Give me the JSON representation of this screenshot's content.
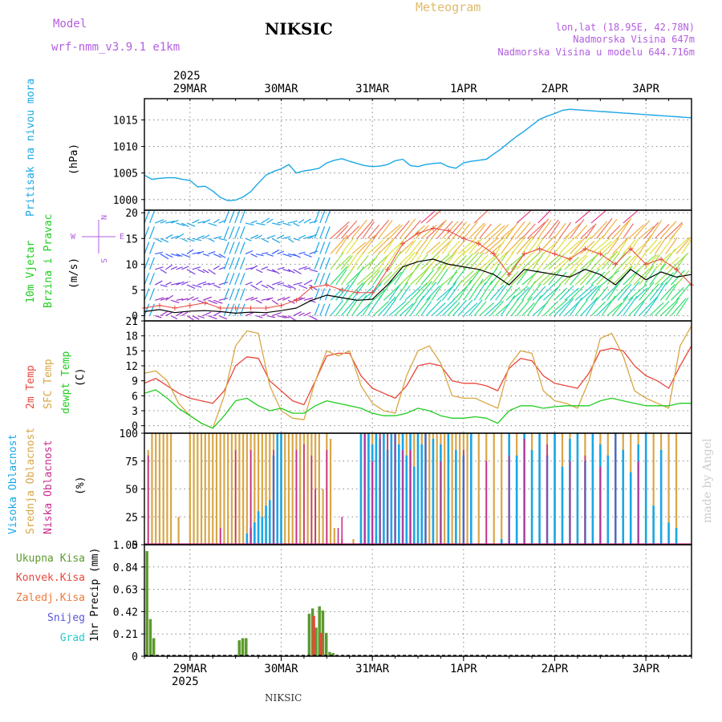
{
  "header": {
    "model_label": "Model",
    "model_name": "wrf-nmm_v3.9.1 e1km",
    "title": "NIKSIC",
    "meteogram": "Meteogram",
    "lonlat": "lon,lat (18.95E, 42.78N)",
    "elev": "Nadmorska Visina 647m",
    "elev_model": "Nadmorska Visina u modelu 644.716m",
    "footer": "NIKSIC",
    "credit": "made by Angel",
    "year": "2025"
  },
  "colors": {
    "pressure": "#1aa7e6",
    "temp2m": "#e8473c",
    "sfc": "#d9a646",
    "dew": "#22cc22",
    "high": "#1aa7e6",
    "mid": "#d9a646",
    "low": "#cc2b8f",
    "total": "#5c9a2c",
    "conv": "#e8473c",
    "frozen": "#ee7a3a",
    "snow": "#5555dd",
    "hail": "#22cccc",
    "wind_label": "#22cc22",
    "compass": "#b35ee0"
  },
  "chart_data": [
    {
      "type": "line",
      "panel": "pressure",
      "ylabel_main": "Pritisak na nivou mora",
      "ylabel_unit": "(hPa)",
      "ylim": [
        998,
        1019
      ],
      "yticks": [
        "1000",
        "1005",
        "1010",
        "1015"
      ],
      "ytick_values": [
        1000,
        1005,
        1010,
        1015
      ],
      "x": [
        0,
        2,
        4,
        6,
        8,
        10,
        12,
        14,
        16,
        18,
        20,
        22,
        24,
        26,
        28,
        30,
        32,
        34,
        36,
        38,
        40,
        42,
        44,
        46,
        48,
        50,
        52,
        54,
        56,
        58,
        60,
        62,
        64,
        66,
        68,
        70,
        72,
        74,
        76,
        78,
        80,
        82,
        84,
        86,
        88,
        90,
        92,
        94,
        96,
        98,
        100,
        102,
        104,
        106,
        108,
        110,
        112,
        114,
        116,
        118,
        120,
        122,
        124,
        126,
        128,
        130,
        132,
        134,
        136,
        138,
        140,
        142,
        144
      ],
      "series": [
        {
          "values": [
            1004.6,
            1003.8,
            1004.0,
            1004.1,
            1004.1,
            1003.8,
            1003.6,
            1002.4,
            1002.5,
            1001.6,
            1000.4,
            999.8,
            999.9,
            1000.5,
            1001.5,
            1003.1,
            1004.6,
            1005.3,
            1005.8,
            1006.6,
            1005.0,
            1005.4,
            1005.6,
            1005.9,
            1006.9,
            1007.4,
            1007.7,
            1007.2,
            1006.8,
            1006.4,
            1006.2,
            1006.3,
            1006.6,
            1007.3,
            1007.6,
            1006.4,
            1006.2,
            1006.6,
            1006.8,
            1006.9,
            1006.2,
            1005.9,
            1006.9,
            1007.2,
            1007.4,
            1007.6,
            1008.6,
            1009.6,
            1010.8,
            1011.9,
            1012.9,
            1014.0,
            1015.1,
            1015.7,
            1016.2,
            1016.8,
            1017.0,
            1016.9,
            1016.8,
            1016.7,
            1016.6,
            1016.5,
            1016.4,
            1016.3,
            1016.2,
            1016.1,
            1016.0,
            1015.9,
            1015.8,
            1015.7,
            1015.6,
            1015.5,
            1015.4
          ]
        }
      ]
    },
    {
      "type": "line",
      "panel": "wind",
      "ylabel_main": "10m Vjetar",
      "ylabel_sub": "Brzina i Pravac",
      "ylabel_unit": "(m/s)",
      "compass": {
        "north": "N",
        "south": "S",
        "west": "W",
        "east": "E"
      },
      "ylim": [
        -1,
        20.5
      ],
      "yticks": [
        "0",
        "5",
        "10",
        "15",
        "20"
      ],
      "ytick_values": [
        0,
        5,
        10,
        15,
        20
      ],
      "x": [
        0,
        4,
        8,
        12,
        16,
        20,
        24,
        28,
        32,
        36,
        40,
        44,
        48,
        52,
        56,
        60,
        64,
        68,
        72,
        76,
        80,
        84,
        88,
        92,
        96,
        100,
        104,
        108,
        112,
        116,
        120,
        124,
        128,
        132,
        136,
        140,
        144
      ],
      "series": [
        {
          "name": "speed",
          "values": [
            0.8,
            1.2,
            0.6,
            0.9,
            1.0,
            0.8,
            0.5,
            0.7,
            0.6,
            1.0,
            1.5,
            3.0,
            4.0,
            3.5,
            3.0,
            3.2,
            6.0,
            9.5,
            10.5,
            11.0,
            10.0,
            9.5,
            9.0,
            8.0,
            6.0,
            9.0,
            8.5,
            8.0,
            7.5,
            9.0,
            8.0,
            6.0,
            9.0,
            7.0,
            8.5,
            7.5,
            8.0
          ]
        },
        {
          "name": "gust",
          "values": [
            1.5,
            2.0,
            1.5,
            2.0,
            2.5,
            1.5,
            1.5,
            1.5,
            1.5,
            2.0,
            3.0,
            5.5,
            6.0,
            5.0,
            4.5,
            4.5,
            9.0,
            14.0,
            16.0,
            17.0,
            16.5,
            15.0,
            14.0,
            12.0,
            8.0,
            12.0,
            13.0,
            12.0,
            11.0,
            13.0,
            12.0,
            10.0,
            13.0,
            10.0,
            11.0,
            9.0,
            6.0
          ]
        }
      ]
    },
    {
      "type": "line",
      "panel": "temperature",
      "ylabel_1": "2m Temp",
      "ylabel_2": "SFC Temp",
      "ylabel_3": "dewpt Temp",
      "ylabel_unit": "(C)",
      "ylim": [
        -1.5,
        21
      ],
      "yticks": [
        "0",
        "3",
        "6",
        "9",
        "12",
        "15",
        "18",
        "21"
      ],
      "ytick_values": [
        0,
        3,
        6,
        9,
        12,
        15,
        18,
        21
      ],
      "x": [
        0,
        3,
        6,
        9,
        12,
        15,
        18,
        21,
        24,
        27,
        30,
        33,
        36,
        39,
        42,
        45,
        48,
        51,
        54,
        57,
        60,
        63,
        66,
        69,
        72,
        75,
        78,
        81,
        84,
        87,
        90,
        93,
        96,
        99,
        102,
        105,
        108,
        111,
        114,
        117,
        120,
        123,
        126,
        129,
        132,
        135,
        138,
        141,
        144
      ],
      "series": [
        {
          "name": "2m Temp",
          "values": [
            8.5,
            9.5,
            8.0,
            6.5,
            5.5,
            5.0,
            4.5,
            7.0,
            12.0,
            13.8,
            13.5,
            9.0,
            7.0,
            5.0,
            4.2,
            9.0,
            14.0,
            14.5,
            14.5,
            10.0,
            7.5,
            6.5,
            5.5,
            8.0,
            12.0,
            12.5,
            12.0,
            9.0,
            8.5,
            8.5,
            8.0,
            7.0,
            11.5,
            13.5,
            13.0,
            10.0,
            8.5,
            8.0,
            7.5,
            10.5,
            15.0,
            15.5,
            15.0,
            12.0,
            10.0,
            9.0,
            7.5,
            12.0,
            16.0
          ]
        },
        {
          "name": "SFC Temp",
          "values": [
            10.5,
            11.0,
            9.0,
            4.5,
            2.0,
            0.5,
            -0.5,
            6.0,
            16.0,
            19.0,
            18.5,
            8.0,
            3.0,
            1.5,
            1.2,
            9.0,
            15.0,
            14.0,
            15.0,
            8.0,
            4.5,
            3.0,
            2.5,
            10.0,
            15.0,
            16.0,
            12.5,
            6.0,
            5.5,
            5.5,
            4.5,
            3.5,
            12.0,
            15.0,
            14.5,
            7.0,
            5.0,
            4.5,
            3.5,
            9.0,
            17.5,
            18.5,
            14.0,
            7.0,
            5.5,
            4.5,
            3.5,
            16.0,
            20.0
          ]
        },
        {
          "name": "dewpt Temp",
          "values": [
            6.5,
            7.2,
            5.5,
            3.5,
            2.0,
            0.5,
            -0.5,
            2.0,
            5.0,
            5.5,
            4.0,
            3.0,
            3.5,
            2.5,
            2.5,
            4.0,
            5.0,
            4.5,
            4.0,
            3.5,
            2.5,
            2.0,
            2.0,
            2.5,
            3.5,
            3.0,
            2.0,
            1.5,
            1.5,
            1.8,
            1.5,
            0.5,
            3.0,
            4.0,
            4.0,
            3.5,
            3.8,
            4.0,
            4.0,
            4.0,
            5.0,
            5.5,
            5.0,
            4.5,
            4.0,
            4.0,
            4.0,
            4.5,
            4.5
          ]
        }
      ]
    },
    {
      "type": "bar",
      "panel": "clouds",
      "ylabel_1": "Visoka Oblacnost",
      "ylabel_2": "Srednja Oblacnost",
      "ylabel_3": "Niska Oblacnost",
      "ylabel_unit": "(%)",
      "ylim": [
        0,
        100
      ],
      "yticks": [
        "0",
        "25",
        "50",
        "75",
        "100"
      ],
      "ytick_values": [
        0,
        25,
        50,
        75,
        100
      ],
      "series": [
        {
          "name": "Visoka Oblacnost",
          "x": [
            27,
            28,
            29,
            30,
            31,
            32,
            33,
            34,
            35,
            36,
            57,
            58,
            59,
            60,
            61,
            62,
            63,
            64,
            65,
            66,
            67,
            68,
            69,
            70,
            71,
            72,
            73,
            74,
            76,
            78,
            80,
            82,
            84,
            86,
            94,
            96,
            98,
            100,
            102,
            104,
            106,
            108,
            110,
            112,
            114,
            116,
            118,
            120,
            122,
            124,
            126,
            128,
            130,
            132,
            134,
            136,
            138,
            140
          ],
          "values": [
            10,
            15,
            20,
            30,
            25,
            35,
            40,
            80,
            100,
            100,
            100,
            100,
            100,
            90,
            100,
            95,
            100,
            85,
            100,
            100,
            90,
            100,
            80,
            100,
            70,
            100,
            90,
            100,
            95,
            90,
            100,
            85,
            80,
            100,
            5,
            100,
            80,
            100,
            85,
            100,
            80,
            100,
            70,
            95,
            100,
            75,
            100,
            90,
            80,
            100,
            85,
            65,
            90,
            100,
            35,
            85,
            20,
            15
          ]
        },
        {
          "name": "Srednja Oblacnost",
          "x": [
            1,
            2,
            3,
            4,
            5,
            6,
            7,
            9,
            12,
            13,
            14,
            15,
            16,
            17,
            18,
            19,
            20,
            21,
            22,
            23,
            24,
            25,
            26,
            27,
            28,
            29,
            30,
            31,
            32,
            33,
            34,
            35,
            36,
            37,
            38,
            39,
            40,
            41,
            42,
            43,
            44,
            45,
            46,
            47,
            48,
            49,
            50,
            52,
            55,
            57,
            58,
            59,
            60,
            61,
            62,
            63,
            64,
            65,
            66,
            67,
            68,
            69,
            70,
            71,
            72,
            73,
            74,
            75,
            76,
            77,
            78,
            79,
            80,
            81,
            82,
            83,
            84,
            85,
            86,
            88,
            90,
            92,
            94,
            96,
            98,
            100,
            102,
            104,
            106,
            108,
            110,
            112,
            114,
            116,
            118,
            120,
            122,
            124,
            126,
            128,
            130,
            132,
            134,
            136,
            138,
            140
          ],
          "values": [
            85,
            100,
            100,
            100,
            100,
            100,
            100,
            25,
            100,
            100,
            100,
            100,
            100,
            100,
            100,
            100,
            100,
            100,
            100,
            100,
            100,
            100,
            100,
            100,
            100,
            100,
            100,
            100,
            100,
            100,
            100,
            100,
            100,
            100,
            100,
            100,
            100,
            100,
            100,
            100,
            100,
            100,
            100,
            50,
            100,
            95,
            15,
            5,
            5,
            100,
            100,
            100,
            100,
            100,
            100,
            100,
            100,
            100,
            100,
            100,
            100,
            100,
            100,
            100,
            100,
            100,
            100,
            100,
            100,
            100,
            100,
            100,
            100,
            100,
            100,
            100,
            100,
            100,
            100,
            100,
            100,
            100,
            100,
            100,
            100,
            100,
            100,
            100,
            100,
            100,
            100,
            100,
            100,
            100,
            100,
            100,
            100,
            100,
            100,
            100,
            100,
            100,
            100,
            100,
            100,
            100
          ]
        },
        {
          "name": "Niska Oblacnost",
          "x": [
            1,
            20,
            24,
            28,
            34,
            40,
            42,
            44,
            45,
            48,
            51,
            52,
            58,
            60,
            62,
            64,
            66,
            68,
            70,
            74,
            78,
            84,
            90,
            96,
            100,
            106,
            112,
            116,
            120,
            124,
            130
          ],
          "values": [
            80,
            15,
            85,
            85,
            85,
            85,
            90,
            80,
            50,
            85,
            15,
            25,
            100,
            75,
            100,
            100,
            100,
            85,
            85,
            100,
            75,
            85,
            75,
            80,
            95,
            90,
            75,
            80,
            70,
            100,
            75
          ]
        }
      ]
    },
    {
      "type": "bar",
      "panel": "precip",
      "ylabel_unit": "1hr Precip (mm)",
      "legend": [
        "Ukupna Kisa",
        "Konvek.Kisa",
        "Zaledj.Kisa",
        "Snijeg",
        "Grad"
      ],
      "ylim": [
        0,
        1.05
      ],
      "yticks": [
        "0",
        "0.21",
        "0.42",
        "0.63",
        "0.84",
        "1.05"
      ],
      "ytick_values": [
        0,
        0.21,
        0.42,
        0.63,
        0.84,
        1.05
      ],
      "xlabels_bottom": [
        "29MAR",
        "30MAR",
        "31MAR",
        "1APR",
        "2APR",
        "3APR"
      ],
      "series": [
        {
          "name": "Ukupna Kisa",
          "x": [
            0.3,
            1.2,
            2.1,
            24.6,
            25.5,
            26.4,
            43.0,
            43.9,
            44.8,
            45.7,
            46.6,
            47.5,
            48.4,
            49.3
          ],
          "values": [
            0.99,
            0.35,
            0.17,
            0.15,
            0.17,
            0.17,
            0.4,
            0.45,
            0.27,
            0.47,
            0.43,
            0.22,
            0.04,
            0.03
          ]
        },
        {
          "name": "Konvek.Kisa",
          "x": [
            44.2,
            46.1
          ],
          "values": [
            0.38,
            0.22
          ]
        }
      ]
    }
  ],
  "xaxis": {
    "labels": [
      "29MAR",
      "30MAR",
      "31MAR",
      "1APR",
      "2APR",
      "3APR"
    ],
    "hours": [
      12,
      36,
      60,
      84,
      108,
      132
    ]
  }
}
